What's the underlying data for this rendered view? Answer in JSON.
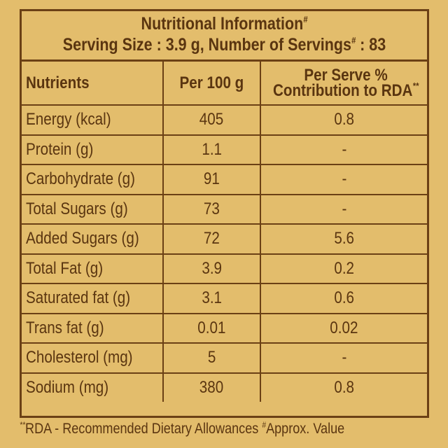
{
  "header": {
    "title": "Nutritional Information",
    "title_mark": "#",
    "serving_prefix": "Serving Size : 3.9 g, Number of Servings",
    "serving_mark": "#",
    "serving_suffix": " : 83"
  },
  "columns": {
    "nutrients": "Nutrients",
    "per_100g": "Per 100 g",
    "rda_line1": "Per Serve %",
    "rda_line2": "Contribution to RDA",
    "rda_mark": "**"
  },
  "rows": [
    {
      "name": "Energy (kcal)",
      "per_100g": "405",
      "rda": "0.8"
    },
    {
      "name": "Protein (g)",
      "per_100g": "1.1",
      "rda": "-"
    },
    {
      "name": "Carbohydrate (g)",
      "per_100g": "91",
      "rda": "-"
    },
    {
      "name": "Total Sugars (g)",
      "per_100g": "73",
      "rda": "-"
    },
    {
      "name": "Added Sugars (g)",
      "per_100g": "72",
      "rda": "5.6"
    },
    {
      "name": "Total Fat (g)",
      "per_100g": "3.9",
      "rda": "0.2"
    },
    {
      "name": "Saturated fat (g)",
      "per_100g": "3.1",
      "rda": "0.6"
    },
    {
      "name": "Trans fat (g)",
      "per_100g": "0.01",
      "rda": "0.02"
    },
    {
      "name": "Cholesterol (mg)",
      "per_100g": "5",
      "rda": "-"
    },
    {
      "name": "Sodium (mg)",
      "per_100g": "380",
      "rda": "0.8"
    }
  ],
  "footer": {
    "mark1": "**",
    "text1": "RDA - Recommended Dietary Allowances ",
    "mark2": "#",
    "text2": "Approx. Value"
  },
  "colors": {
    "background": "#e3bd6c",
    "text": "#5a3510",
    "border": "#6b4015"
  }
}
